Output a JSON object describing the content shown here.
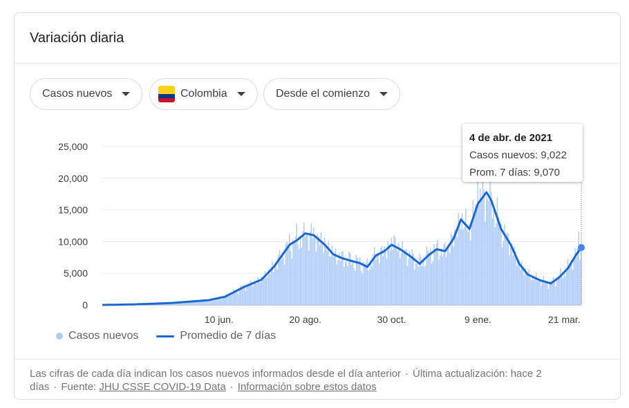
{
  "card": {
    "title": "Variación diaria"
  },
  "filters": {
    "metric": "Casos nuevos",
    "country": "Colombia",
    "range": "Desde el comienzo"
  },
  "colors": {
    "bar": "#aecbfa",
    "line": "#1967d2",
    "flag_yellow": "#fcd116",
    "flag_blue": "#003893",
    "flag_red": "#ce1126"
  },
  "tooltip": {
    "date": "4 de abr. de 2021",
    "cases": "Casos nuevos: 9,022",
    "avg": "Prom. 7 días: 9,070"
  },
  "legend": {
    "bars": "Casos nuevos",
    "line": "Promedio de 7 días"
  },
  "footer": {
    "note": "Las cifras de cada día indican los casos nuevos informados desde el día anterior",
    "updated": "Última actualización: hace 2 días",
    "source_label": "Fuente:",
    "source_link": "JHU CSSE COVID-19 Data",
    "info_link": "Información sobre estos datos",
    "dot": "·"
  },
  "chart_data": {
    "type": "bar",
    "x_range": [
      "2020-03-06",
      "2021-04-04"
    ],
    "ylim": [
      0,
      25000
    ],
    "yticks": [
      0,
      5000,
      10000,
      15000,
      20000,
      25000
    ],
    "ytick_labels": [
      "0",
      "5,000",
      "10,000",
      "15,000",
      "20,000",
      "25,000"
    ],
    "xticks": [
      {
        "date": "2020-06-10",
        "label": "10 jun."
      },
      {
        "date": "2020-08-20",
        "label": "20 ago."
      },
      {
        "date": "2020-10-30",
        "label": "30 oct."
      },
      {
        "date": "2021-01-09",
        "label": "9 ene."
      },
      {
        "date": "2021-03-21",
        "label": "21 mar."
      }
    ],
    "grid": true,
    "legend_position": "bottom-left",
    "highlight": {
      "date": "2021-04-04",
      "cases": 9022,
      "avg": 9070
    },
    "series": [
      {
        "name": "Promedio de 7 días",
        "type": "line",
        "points": [
          [
            "2020-03-06",
            0
          ],
          [
            "2020-04-01",
            90
          ],
          [
            "2020-05-01",
            300
          ],
          [
            "2020-06-01",
            750
          ],
          [
            "2020-06-15",
            1300
          ],
          [
            "2020-06-30",
            2800
          ],
          [
            "2020-07-15",
            4000
          ],
          [
            "2020-07-25",
            6000
          ],
          [
            "2020-07-31",
            7600
          ],
          [
            "2020-08-07",
            9500
          ],
          [
            "2020-08-13",
            10200
          ],
          [
            "2020-08-20",
            11300
          ],
          [
            "2020-08-27",
            11000
          ],
          [
            "2020-09-05",
            9500
          ],
          [
            "2020-09-12",
            8000
          ],
          [
            "2020-09-19",
            7400
          ],
          [
            "2020-09-26",
            7000
          ],
          [
            "2020-10-04",
            6600
          ],
          [
            "2020-10-10",
            6000
          ],
          [
            "2020-10-17",
            7800
          ],
          [
            "2020-10-24",
            8500
          ],
          [
            "2020-10-30",
            9500
          ],
          [
            "2020-11-06",
            8800
          ],
          [
            "2020-11-15",
            7600
          ],
          [
            "2020-11-22",
            6500
          ],
          [
            "2020-11-29",
            7800
          ],
          [
            "2020-12-06",
            8800
          ],
          [
            "2020-12-13",
            8500
          ],
          [
            "2020-12-20",
            10500
          ],
          [
            "2020-12-26",
            13500
          ],
          [
            "2021-01-02",
            12000
          ],
          [
            "2021-01-09",
            16000
          ],
          [
            "2021-01-16",
            17800
          ],
          [
            "2021-01-20",
            16500
          ],
          [
            "2021-01-28",
            12000
          ],
          [
            "2021-02-05",
            9500
          ],
          [
            "2021-02-12",
            6500
          ],
          [
            "2021-02-19",
            4800
          ],
          [
            "2021-03-01",
            3900
          ],
          [
            "2021-03-10",
            3400
          ],
          [
            "2021-03-17",
            4400
          ],
          [
            "2021-03-24",
            5800
          ],
          [
            "2021-03-31",
            8000
          ],
          [
            "2021-04-04",
            9070
          ]
        ]
      },
      {
        "name": "Casos nuevos",
        "type": "bar",
        "shape": "daily bars following the 7-day average with day-to-day variation",
        "peaks": [
          [
            "2020-08-19",
            13000
          ],
          [
            "2020-11-01",
            11000
          ],
          [
            "2021-01-09",
            19800
          ],
          [
            "2021-04-02",
            11600
          ]
        ]
      }
    ]
  }
}
